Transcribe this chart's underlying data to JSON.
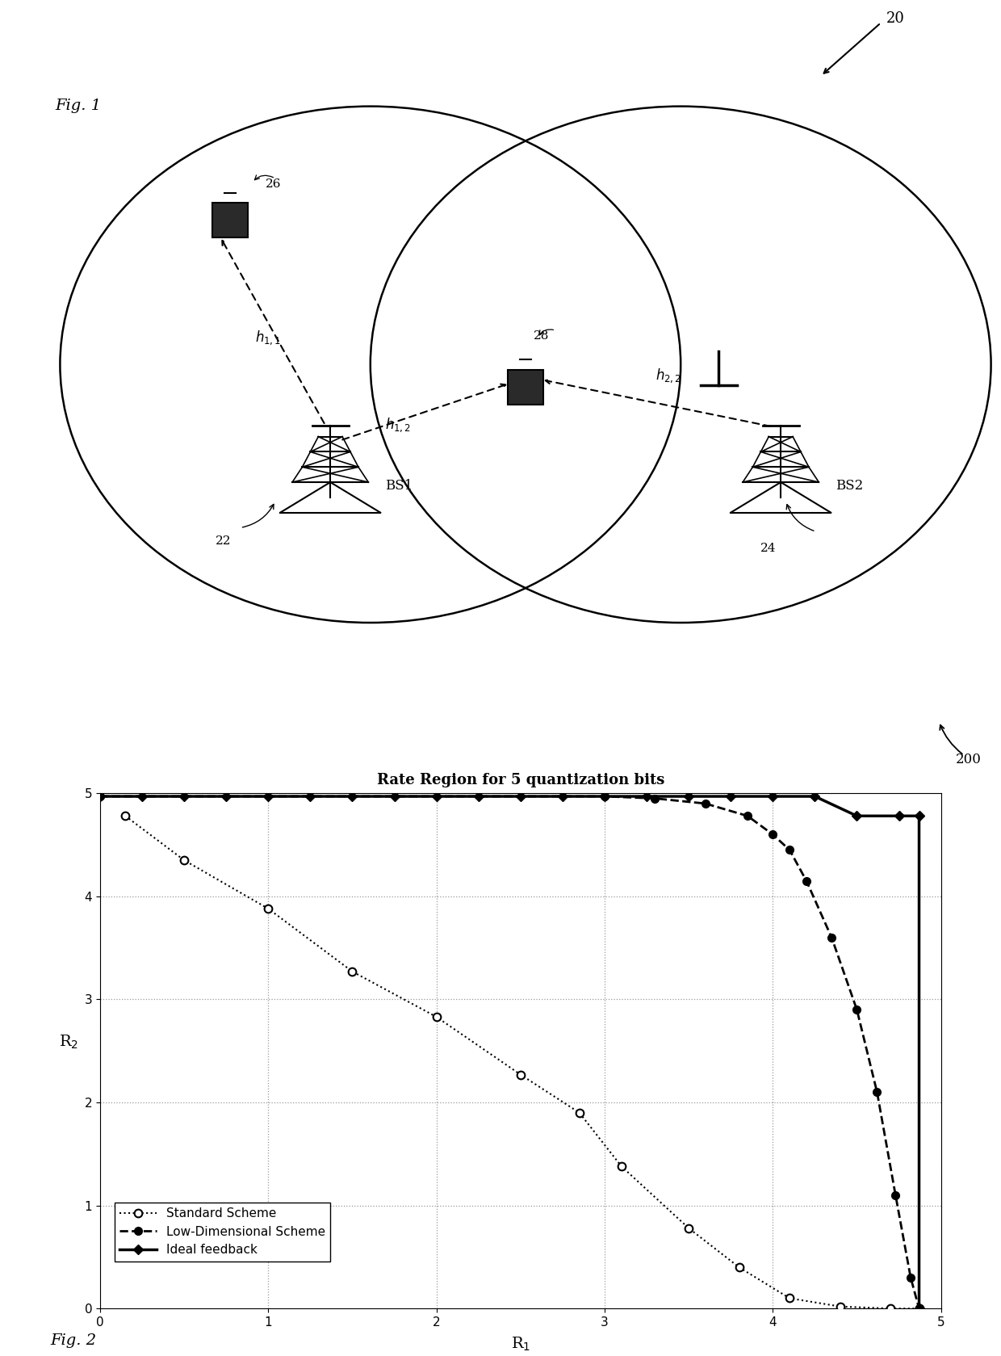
{
  "fig1_label": "Fig. 1",
  "fig2_label": "Fig. 2",
  "label_20": "20",
  "label_22": "22",
  "label_24": "24",
  "label_26": "26",
  "label_28": "28",
  "label_200": "200",
  "bs1_label": "BS1",
  "bs2_label": "BS2",
  "plot_title": "Rate Region for 5 quantization bits",
  "xlabel": "R$_1$",
  "ylabel": "R$_2$",
  "xlim": [
    0,
    5
  ],
  "ylim": [
    0,
    5
  ],
  "xticks": [
    0,
    1,
    2,
    3,
    4,
    5
  ],
  "yticks": [
    0,
    1,
    2,
    3,
    4,
    5
  ],
  "standard_x": [
    0.15,
    0.5,
    1.0,
    1.5,
    2.0,
    2.5,
    2.85,
    3.1,
    3.5,
    3.8,
    4.1,
    4.4,
    4.7,
    4.87
  ],
  "standard_y": [
    4.78,
    4.35,
    3.88,
    3.27,
    2.83,
    2.27,
    1.9,
    1.38,
    0.78,
    0.4,
    0.1,
    0.02,
    0.0,
    0.0
  ],
  "lowdim_x": [
    0.0,
    3.0,
    3.3,
    3.6,
    3.85,
    4.0,
    4.1,
    4.2,
    4.35,
    4.5,
    4.62,
    4.73,
    4.82,
    4.87
  ],
  "lowdim_y": [
    4.97,
    4.97,
    4.95,
    4.9,
    4.78,
    4.6,
    4.45,
    4.15,
    3.6,
    2.9,
    2.1,
    1.1,
    0.3,
    0.0
  ],
  "ideal_x": [
    0.0,
    0.25,
    0.5,
    0.75,
    1.0,
    1.25,
    1.5,
    1.75,
    2.0,
    2.25,
    2.5,
    2.75,
    3.0,
    3.25,
    3.5,
    3.75,
    4.0,
    4.25,
    4.5,
    4.75,
    4.87,
    4.87
  ],
  "ideal_y": [
    4.97,
    4.97,
    4.97,
    4.97,
    4.97,
    4.97,
    4.97,
    4.97,
    4.97,
    4.97,
    4.97,
    4.97,
    4.97,
    4.97,
    4.97,
    4.97,
    4.97,
    4.97,
    4.78,
    4.78,
    4.78,
    0.0
  ],
  "bg_color": "#ffffff",
  "grid_color": "#999999",
  "title_fontsize": 13,
  "label_fontsize": 13,
  "tick_fontsize": 11,
  "legend_fontsize": 11
}
